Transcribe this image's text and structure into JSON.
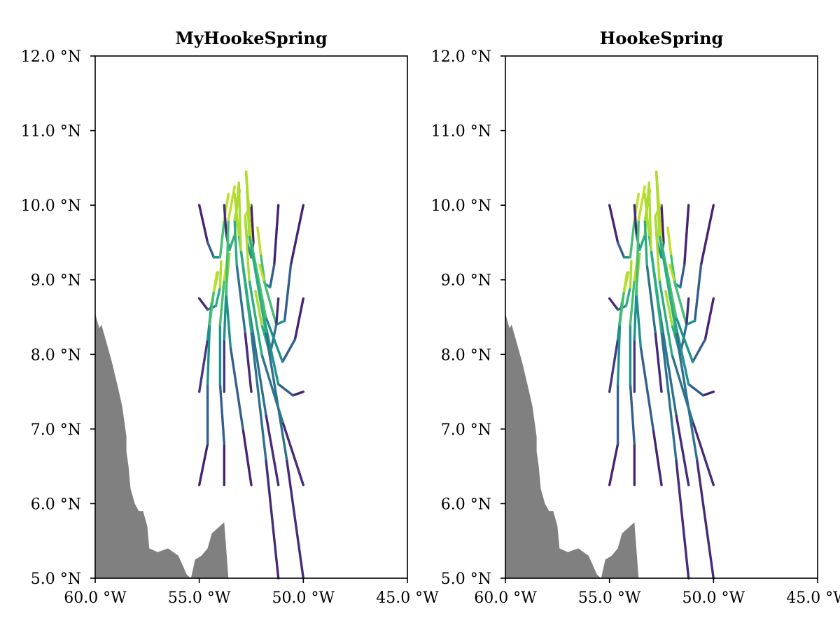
{
  "chart_data": [
    {
      "type": "line",
      "title": "MyHookeSpring",
      "xlim": [
        -60,
        -45
      ],
      "ylim": [
        5,
        12
      ],
      "xticks": [
        {
          "value": -60,
          "label": "60.0 °W"
        },
        {
          "value": -55,
          "label": "55.0 °W"
        },
        {
          "value": -50,
          "label": "50.0 °W"
        },
        {
          "value": -45,
          "label": "45.0 °W"
        }
      ],
      "yticks": [
        {
          "value": 5,
          "label": "5.0 °N"
        },
        {
          "value": 6,
          "label": "6.0 °N"
        },
        {
          "value": 7,
          "label": "7.0 °N"
        },
        {
          "value": 8,
          "label": "8.0 °N"
        },
        {
          "value": 9,
          "label": "9.0 °N"
        },
        {
          "value": 10,
          "label": "10.0 °N"
        },
        {
          "value": 11,
          "label": "11.0 °N"
        },
        {
          "value": 12,
          "label": "12.0 °N"
        }
      ],
      "colormap": "viridis",
      "land_color": "#808080",
      "grid": false
    },
    {
      "type": "line",
      "title": "HookeSpring",
      "xlim": [
        -60,
        -45
      ],
      "ylim": [
        5,
        12
      ],
      "xticks": [
        {
          "value": -60,
          "label": "60.0 °W"
        },
        {
          "value": -55,
          "label": "55.0 °W"
        },
        {
          "value": -50,
          "label": "50.0 °W"
        },
        {
          "value": -45,
          "label": "45.0 °W"
        }
      ],
      "yticks": [
        {
          "value": 5,
          "label": "5.0 °N"
        },
        {
          "value": 6,
          "label": "6.0 °N"
        },
        {
          "value": 7,
          "label": "7.0 °N"
        },
        {
          "value": 8,
          "label": "8.0 °N"
        },
        {
          "value": 9,
          "label": "9.0 °N"
        },
        {
          "value": 10,
          "label": "10.0 °N"
        },
        {
          "value": 11,
          "label": "11.0 °N"
        },
        {
          "value": 12,
          "label": "12.0 °N"
        }
      ],
      "colormap": "viridis",
      "land_color": "#808080",
      "grid": false
    }
  ],
  "coastline": [
    [
      -60,
      5
    ],
    [
      -60,
      8.55
    ],
    [
      -59.8,
      8.35
    ],
    [
      -59.7,
      8.4
    ],
    [
      -59.5,
      8.2
    ],
    [
      -59.2,
      7.9
    ],
    [
      -58.9,
      7.55
    ],
    [
      -58.7,
      7.3
    ],
    [
      -58.5,
      6.9
    ],
    [
      -58.5,
      6.7
    ],
    [
      -58.4,
      6.5
    ],
    [
      -58.3,
      6.2
    ],
    [
      -58.1,
      6.0
    ],
    [
      -57.9,
      5.9
    ],
    [
      -57.7,
      5.9
    ],
    [
      -57.5,
      5.7
    ],
    [
      -57.4,
      5.4
    ],
    [
      -57.0,
      5.35
    ],
    [
      -56.5,
      5.4
    ],
    [
      -56.0,
      5.3
    ],
    [
      -55.6,
      5.05
    ],
    [
      -55.4,
      5.0
    ],
    [
      -55.2,
      5.25
    ],
    [
      -54.9,
      5.3
    ],
    [
      -54.6,
      5.4
    ],
    [
      -54.4,
      5.6
    ],
    [
      -54.2,
      5.65
    ],
    [
      -53.8,
      5.75
    ],
    [
      -53.6,
      5.0
    ],
    [
      -53.0,
      5.0
    ],
    [
      -60,
      5
    ]
  ],
  "trajectories": [
    [
      [
        -55,
        10.0
      ],
      [
        -54.6,
        9.5
      ],
      [
        -54.3,
        9.3
      ],
      [
        -54.0,
        9.3
      ],
      [
        -53.8,
        9.8
      ],
      [
        -53.6,
        10.15
      ]
    ],
    [
      [
        -53.8,
        10.0
      ],
      [
        -53.7,
        9.6
      ],
      [
        -53.55,
        9.4
      ],
      [
        -53.3,
        9.6
      ],
      [
        -53.1,
        10.3
      ]
    ],
    [
      [
        -52.5,
        10.0
      ],
      [
        -52.4,
        9.5
      ],
      [
        -52.5,
        9.3
      ],
      [
        -52.7,
        9.5
      ],
      [
        -52.8,
        9.85
      ],
      [
        -52.55,
        10.0
      ]
    ],
    [
      [
        -51.2,
        10.0
      ],
      [
        -51.4,
        9.2
      ],
      [
        -51.6,
        8.9
      ],
      [
        -51.85,
        8.95
      ],
      [
        -52.05,
        9.35
      ],
      [
        -52.2,
        9.7
      ]
    ],
    [
      [
        -50.0,
        10.0
      ],
      [
        -50.6,
        9.2
      ],
      [
        -50.9,
        8.45
      ],
      [
        -51.3,
        8.4
      ],
      [
        -51.9,
        9.0
      ],
      [
        -52.1,
        9.2
      ]
    ],
    [
      [
        -55,
        8.75
      ],
      [
        -54.6,
        8.6
      ],
      [
        -54.2,
        8.65
      ],
      [
        -54.0,
        8.9
      ],
      [
        -53.95,
        9.25
      ]
    ],
    [
      [
        -51.2,
        8.75
      ],
      [
        -51.3,
        8.4
      ],
      [
        -51.6,
        8.0
      ],
      [
        -52.0,
        8.4
      ],
      [
        -52.3,
        8.85
      ]
    ],
    [
      [
        -50.0,
        8.75
      ],
      [
        -50.4,
        8.2
      ],
      [
        -51.0,
        7.9
      ],
      [
        -51.8,
        8.5
      ],
      [
        -52.5,
        9.5
      ],
      [
        -52.75,
        10.45
      ]
    ],
    [
      [
        -55,
        7.5
      ],
      [
        -54.6,
        8.2
      ],
      [
        -54.4,
        8.7
      ],
      [
        -54.1,
        9.1
      ]
    ],
    [
      [
        -53.8,
        7.5
      ],
      [
        -53.8,
        8.2
      ],
      [
        -53.7,
        8.9
      ],
      [
        -53.55,
        9.35
      ]
    ],
    [
      [
        -52.5,
        7.5
      ],
      [
        -52.8,
        8.3
      ],
      [
        -53.2,
        9.2
      ],
      [
        -53.3,
        9.8
      ],
      [
        -53.05,
        10.2
      ]
    ],
    [
      [
        -50.0,
        7.5
      ],
      [
        -50.5,
        7.45
      ],
      [
        -51.2,
        7.6
      ],
      [
        -51.9,
        8.5
      ],
      [
        -52.5,
        9.5
      ],
      [
        -52.75,
        10.45
      ]
    ],
    [
      [
        -55,
        6.25
      ],
      [
        -54.6,
        6.8
      ],
      [
        -54.6,
        7.6
      ],
      [
        -54.5,
        8.4
      ],
      [
        -54.3,
        8.85
      ],
      [
        -54.15,
        9.1
      ]
    ],
    [
      [
        -53.8,
        6.25
      ],
      [
        -53.8,
        6.8
      ],
      [
        -54.0,
        7.6
      ],
      [
        -54.0,
        8.4
      ],
      [
        -53.8,
        9.0
      ],
      [
        -53.65,
        9.3
      ]
    ],
    [
      [
        -52.5,
        6.25
      ],
      [
        -52.9,
        7.0
      ],
      [
        -53.5,
        8.1
      ],
      [
        -53.7,
        8.8
      ],
      [
        -53.6,
        9.8
      ],
      [
        -53.3,
        10.25
      ]
    ],
    [
      [
        -51.2,
        6.25
      ],
      [
        -51.8,
        7.2
      ],
      [
        -52.6,
        8.6
      ],
      [
        -53.1,
        9.6
      ],
      [
        -53.3,
        10.15
      ]
    ],
    [
      [
        -50.0,
        6.25
      ],
      [
        -51.0,
        7.1
      ],
      [
        -52.0,
        8.0
      ],
      [
        -52.6,
        9.0
      ],
      [
        -52.8,
        9.85
      ]
    ],
    [
      [
        -51.2,
        5.0
      ],
      [
        -51.8,
        6.6
      ],
      [
        -52.5,
        8.3
      ],
      [
        -53.0,
        9.4
      ],
      [
        -53.1,
        10.3
      ]
    ],
    [
      [
        -50.0,
        5.0
      ],
      [
        -50.8,
        6.6
      ],
      [
        -51.8,
        8.3
      ],
      [
        -52.6,
        9.6
      ],
      [
        -52.75,
        10.45
      ]
    ]
  ]
}
